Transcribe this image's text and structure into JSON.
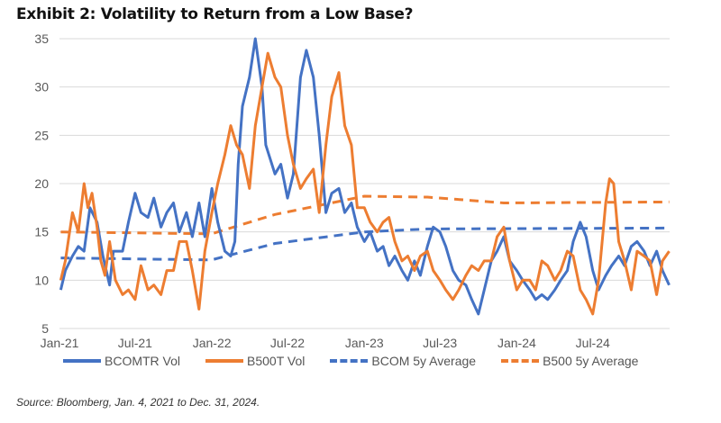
{
  "title": "Exhibit 2: Volatility to Return from a Low Base?",
  "source": "Source: Bloomberg, Jan. 4, 2021 to Dec. 31, 2024.",
  "chart_data": {
    "type": "line",
    "title": "Exhibit 2: Volatility to Return from a Low Base?",
    "xlabel": "",
    "ylabel": "",
    "xlim": [
      "2021-01-01",
      "2025-01-01"
    ],
    "ylim": [
      5,
      35
    ],
    "yticks": [
      5,
      10,
      15,
      20,
      25,
      30,
      35
    ],
    "xticks": [
      {
        "date": "2021-01-01",
        "label": "Jan-21"
      },
      {
        "date": "2021-07-01",
        "label": "Jul-21"
      },
      {
        "date": "2022-01-01",
        "label": "Jan-22"
      },
      {
        "date": "2022-07-01",
        "label": "Jul-22"
      },
      {
        "date": "2023-01-01",
        "label": "Jan-23"
      },
      {
        "date": "2023-07-01",
        "label": "Jul-23"
      },
      {
        "date": "2024-01-01",
        "label": "Jan-24"
      },
      {
        "date": "2024-07-01",
        "label": "Jul-24"
      }
    ],
    "grid": "horizontal",
    "legend_position": "bottom",
    "series": [
      {
        "name": "BCOMTR Vol",
        "color": "#4472C4",
        "style": "solid",
        "points": [
          [
            "2021-01-04",
            9
          ],
          [
            "2021-01-15",
            11
          ],
          [
            "2021-02-01",
            12.5
          ],
          [
            "2021-02-15",
            13.5
          ],
          [
            "2021-03-01",
            13
          ],
          [
            "2021-03-15",
            17.5
          ],
          [
            "2021-04-01",
            16
          ],
          [
            "2021-04-15",
            12.5
          ],
          [
            "2021-05-01",
            9.5
          ],
          [
            "2021-05-10",
            13
          ],
          [
            "2021-06-01",
            13
          ],
          [
            "2021-06-15",
            16
          ],
          [
            "2021-07-01",
            19
          ],
          [
            "2021-07-15",
            17
          ],
          [
            "2021-08-01",
            16.5
          ],
          [
            "2021-08-15",
            18.5
          ],
          [
            "2021-09-01",
            15.5
          ],
          [
            "2021-09-15",
            17
          ],
          [
            "2021-10-01",
            18
          ],
          [
            "2021-10-15",
            15
          ],
          [
            "2021-11-01",
            17
          ],
          [
            "2021-11-15",
            14.5
          ],
          [
            "2021-12-01",
            18
          ],
          [
            "2021-12-15",
            14.5
          ],
          [
            "2022-01-01",
            19.5
          ],
          [
            "2022-01-15",
            16
          ],
          [
            "2022-02-01",
            13
          ],
          [
            "2022-02-15",
            12.5
          ],
          [
            "2022-02-25",
            14
          ],
          [
            "2022-03-05",
            22
          ],
          [
            "2022-03-15",
            28
          ],
          [
            "2022-04-01",
            31
          ],
          [
            "2022-04-15",
            35
          ],
          [
            "2022-05-01",
            30
          ],
          [
            "2022-05-10",
            24
          ],
          [
            "2022-06-01",
            21
          ],
          [
            "2022-06-15",
            22
          ],
          [
            "2022-07-01",
            18.5
          ],
          [
            "2022-07-15",
            21
          ],
          [
            "2022-08-01",
            31
          ],
          [
            "2022-08-15",
            33.8
          ],
          [
            "2022-09-01",
            31
          ],
          [
            "2022-09-15",
            25
          ],
          [
            "2022-10-01",
            17
          ],
          [
            "2022-10-15",
            19
          ],
          [
            "2022-11-01",
            19.5
          ],
          [
            "2022-11-15",
            17
          ],
          [
            "2022-12-01",
            18
          ],
          [
            "2022-12-15",
            15.5
          ],
          [
            "2023-01-01",
            14
          ],
          [
            "2023-01-15",
            15
          ],
          [
            "2023-02-01",
            13
          ],
          [
            "2023-02-15",
            13.5
          ],
          [
            "2023-03-01",
            11.5
          ],
          [
            "2023-03-15",
            12.5
          ],
          [
            "2023-04-01",
            11
          ],
          [
            "2023-04-15",
            10
          ],
          [
            "2023-05-01",
            12
          ],
          [
            "2023-05-15",
            10.5
          ],
          [
            "2023-06-01",
            13.5
          ],
          [
            "2023-06-15",
            15.5
          ],
          [
            "2023-07-01",
            15
          ],
          [
            "2023-07-15",
            13.5
          ],
          [
            "2023-08-01",
            11
          ],
          [
            "2023-08-15",
            10
          ],
          [
            "2023-09-01",
            9.5
          ],
          [
            "2023-09-15",
            8
          ],
          [
            "2023-10-01",
            6.5
          ],
          [
            "2023-10-15",
            9
          ],
          [
            "2023-11-01",
            12
          ],
          [
            "2023-11-15",
            13
          ],
          [
            "2023-12-01",
            14.5
          ],
          [
            "2023-12-15",
            12
          ],
          [
            "2024-01-01",
            11
          ],
          [
            "2024-01-15",
            10
          ],
          [
            "2024-02-01",
            9
          ],
          [
            "2024-02-15",
            8
          ],
          [
            "2024-03-01",
            8.5
          ],
          [
            "2024-03-15",
            8
          ],
          [
            "2024-04-01",
            9
          ],
          [
            "2024-04-15",
            10
          ],
          [
            "2024-05-01",
            11
          ],
          [
            "2024-05-15",
            14
          ],
          [
            "2024-06-01",
            16
          ],
          [
            "2024-06-15",
            14.5
          ],
          [
            "2024-07-01",
            11
          ],
          [
            "2024-07-15",
            9
          ],
          [
            "2024-08-01",
            10.5
          ],
          [
            "2024-08-15",
            11.5
          ],
          [
            "2024-09-01",
            12.5
          ],
          [
            "2024-09-15",
            11.5
          ],
          [
            "2024-10-01",
            13.5
          ],
          [
            "2024-10-15",
            14
          ],
          [
            "2024-11-01",
            13
          ],
          [
            "2024-11-15",
            11.5
          ],
          [
            "2024-12-01",
            13
          ],
          [
            "2024-12-15",
            11
          ],
          [
            "2024-12-31",
            9.5
          ]
        ]
      },
      {
        "name": "B500T Vol",
        "color": "#ED7D31",
        "style": "solid",
        "points": [
          [
            "2021-01-04",
            10
          ],
          [
            "2021-01-15",
            12
          ],
          [
            "2021-02-01",
            17
          ],
          [
            "2021-02-15",
            15
          ],
          [
            "2021-03-01",
            20
          ],
          [
            "2021-03-10",
            17.5
          ],
          [
            "2021-03-20",
            19
          ],
          [
            "2021-04-01",
            15.5
          ],
          [
            "2021-04-10",
            12
          ],
          [
            "2021-04-20",
            10.5
          ],
          [
            "2021-05-01",
            14
          ],
          [
            "2021-05-15",
            10
          ],
          [
            "2021-06-01",
            8.5
          ],
          [
            "2021-06-15",
            9
          ],
          [
            "2021-07-01",
            8
          ],
          [
            "2021-07-15",
            11.5
          ],
          [
            "2021-08-01",
            9
          ],
          [
            "2021-08-15",
            9.5
          ],
          [
            "2021-09-01",
            8.5
          ],
          [
            "2021-09-15",
            11
          ],
          [
            "2021-10-01",
            11
          ],
          [
            "2021-10-15",
            14
          ],
          [
            "2021-11-01",
            14
          ],
          [
            "2021-11-15",
            11
          ],
          [
            "2021-12-01",
            7
          ],
          [
            "2021-12-15",
            13
          ],
          [
            "2022-01-01",
            17
          ],
          [
            "2022-01-15",
            20
          ],
          [
            "2022-02-01",
            23
          ],
          [
            "2022-02-15",
            26
          ],
          [
            "2022-03-01",
            24
          ],
          [
            "2022-03-15",
            23
          ],
          [
            "2022-04-01",
            19.5
          ],
          [
            "2022-04-15",
            26
          ],
          [
            "2022-05-01",
            30
          ],
          [
            "2022-05-15",
            33.5
          ],
          [
            "2022-06-01",
            31
          ],
          [
            "2022-06-15",
            30
          ],
          [
            "2022-07-01",
            25
          ],
          [
            "2022-07-15",
            22
          ],
          [
            "2022-08-01",
            19.5
          ],
          [
            "2022-08-15",
            20.5
          ],
          [
            "2022-09-01",
            21.5
          ],
          [
            "2022-09-15",
            17
          ],
          [
            "2022-10-01",
            24
          ],
          [
            "2022-10-15",
            29
          ],
          [
            "2022-11-01",
            31.5
          ],
          [
            "2022-11-15",
            26
          ],
          [
            "2022-12-01",
            24
          ],
          [
            "2022-12-15",
            17.5
          ],
          [
            "2023-01-01",
            17.5
          ],
          [
            "2023-01-15",
            16
          ],
          [
            "2023-02-01",
            15
          ],
          [
            "2023-02-15",
            16
          ],
          [
            "2023-03-01",
            16.5
          ],
          [
            "2023-03-15",
            14
          ],
          [
            "2023-04-01",
            12
          ],
          [
            "2023-04-15",
            12.5
          ],
          [
            "2023-05-01",
            11
          ],
          [
            "2023-05-15",
            12.5
          ],
          [
            "2023-06-01",
            13
          ],
          [
            "2023-06-15",
            11
          ],
          [
            "2023-07-01",
            10
          ],
          [
            "2023-07-15",
            9
          ],
          [
            "2023-08-01",
            8
          ],
          [
            "2023-08-15",
            9
          ],
          [
            "2023-09-01",
            10.5
          ],
          [
            "2023-09-15",
            11.5
          ],
          [
            "2023-10-01",
            11
          ],
          [
            "2023-10-15",
            12
          ],
          [
            "2023-11-01",
            12
          ],
          [
            "2023-11-15",
            14.5
          ],
          [
            "2023-12-01",
            15.5
          ],
          [
            "2023-12-15",
            12
          ],
          [
            "2024-01-01",
            9
          ],
          [
            "2024-01-15",
            10
          ],
          [
            "2024-02-01",
            10
          ],
          [
            "2024-02-15",
            9
          ],
          [
            "2024-03-01",
            12
          ],
          [
            "2024-03-15",
            11.5
          ],
          [
            "2024-04-01",
            10
          ],
          [
            "2024-04-15",
            11
          ],
          [
            "2024-05-01",
            13
          ],
          [
            "2024-05-15",
            12.5
          ],
          [
            "2024-06-01",
            9
          ],
          [
            "2024-06-15",
            8
          ],
          [
            "2024-07-01",
            6.5
          ],
          [
            "2024-07-15",
            10
          ],
          [
            "2024-08-01",
            18
          ],
          [
            "2024-08-10",
            20.5
          ],
          [
            "2024-08-20",
            20
          ],
          [
            "2024-09-01",
            14
          ],
          [
            "2024-09-15",
            12
          ],
          [
            "2024-10-01",
            9
          ],
          [
            "2024-10-15",
            13
          ],
          [
            "2024-11-01",
            12.5
          ],
          [
            "2024-11-15",
            12
          ],
          [
            "2024-12-01",
            8.5
          ],
          [
            "2024-12-15",
            12
          ],
          [
            "2024-12-31",
            13
          ]
        ]
      },
      {
        "name": "BCOM 5y Average",
        "color": "#4472C4",
        "style": "dashed",
        "points": [
          [
            "2021-01-04",
            12.3
          ],
          [
            "2021-12-31",
            12.1
          ],
          [
            "2022-06-01",
            13.8
          ],
          [
            "2023-01-01",
            15.0
          ],
          [
            "2023-06-01",
            15.3
          ],
          [
            "2024-12-31",
            15.4
          ]
        ]
      },
      {
        "name": "B500 5y Average",
        "color": "#ED7D31",
        "style": "dashed",
        "points": [
          [
            "2021-01-04",
            15.0
          ],
          [
            "2021-12-31",
            14.8
          ],
          [
            "2022-06-01",
            16.8
          ],
          [
            "2023-01-01",
            18.7
          ],
          [
            "2023-06-01",
            18.6
          ],
          [
            "2023-12-01",
            18.0
          ],
          [
            "2024-12-31",
            18.1
          ]
        ]
      }
    ]
  }
}
